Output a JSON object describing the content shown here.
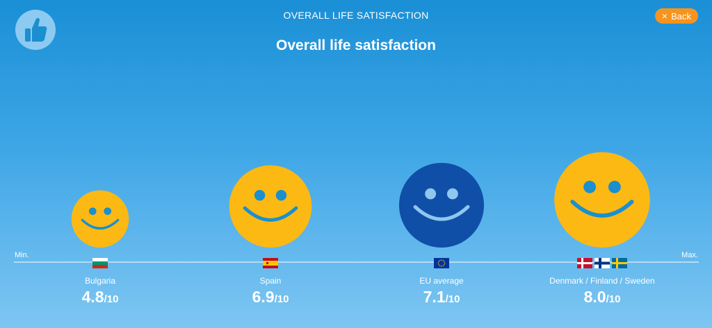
{
  "header": {
    "title": "OVERALL LIFE SATISFACTION",
    "back_label": "Back",
    "logo_icon": "thumbs-up-icon"
  },
  "chart_data": {
    "type": "bubble",
    "title": "Overall life satisfaction",
    "axis_min_label": "Min.",
    "axis_max_label": "Max.",
    "scale_max": 10,
    "denominator_label": "/10",
    "colors": {
      "country_face": "#fdb913",
      "country_features": "#1b8fcf",
      "eu_face": "#0f4fa8",
      "eu_features": "#8fc7ee",
      "axis": "#cfe8f9"
    },
    "items": [
      {
        "label": "Bulgaria",
        "value": 4.8,
        "value_label": "4.8",
        "flags": [
          "bulgaria"
        ],
        "highlight": false
      },
      {
        "label": "Spain",
        "value": 6.9,
        "value_label": "6.9",
        "flags": [
          "spain"
        ],
        "highlight": false
      },
      {
        "label": "EU average",
        "value": 7.1,
        "value_label": "7.1",
        "flags": [
          "eu"
        ],
        "highlight": true
      },
      {
        "label": "Denmark / Finland / Sweden",
        "value": 8.0,
        "value_label": "8.0",
        "flags": [
          "denmark",
          "finland",
          "sweden"
        ],
        "highlight": false
      }
    ]
  }
}
